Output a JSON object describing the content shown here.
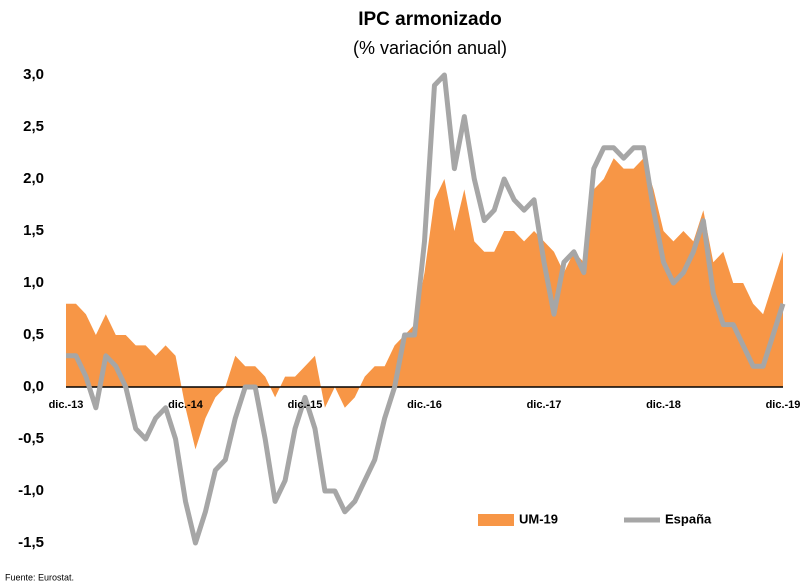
{
  "chart_data": {
    "type": "area_line",
    "title": "IPC armonizado",
    "subtitle": "(% variación anual)",
    "source": "Fuente: Eurostat.",
    "categories": [
      "dic.-13",
      null,
      null,
      null,
      null,
      null,
      null,
      null,
      null,
      null,
      null,
      null,
      "dic.-14",
      null,
      null,
      null,
      null,
      null,
      null,
      null,
      null,
      null,
      null,
      null,
      "dic.-15",
      null,
      null,
      null,
      null,
      null,
      null,
      null,
      null,
      null,
      null,
      null,
      "dic.-16",
      null,
      null,
      null,
      null,
      null,
      null,
      null,
      null,
      null,
      null,
      null,
      "dic.-17",
      null,
      null,
      null,
      null,
      null,
      null,
      null,
      null,
      null,
      null,
      null,
      "dic.-18",
      null,
      null,
      null,
      null,
      null,
      null,
      null,
      null,
      null,
      null,
      null,
      "dic.-19"
    ],
    "series": [
      {
        "name": "UM-19",
        "kind": "area",
        "color": "#f79646",
        "values": [
          0.8,
          0.8,
          0.7,
          0.5,
          0.7,
          0.5,
          0.5,
          0.4,
          0.4,
          0.3,
          0.4,
          0.3,
          -0.2,
          -0.6,
          -0.3,
          -0.1,
          0.0,
          0.3,
          0.2,
          0.2,
          0.1,
          -0.1,
          0.1,
          0.1,
          0.2,
          0.3,
          -0.2,
          0.0,
          -0.2,
          -0.1,
          0.1,
          0.2,
          0.2,
          0.4,
          0.5,
          0.6,
          1.1,
          1.8,
          2.0,
          1.5,
          1.9,
          1.4,
          1.3,
          1.3,
          1.5,
          1.5,
          1.4,
          1.5,
          1.4,
          1.3,
          1.1,
          1.3,
          1.2,
          1.9,
          2.0,
          2.2,
          2.1,
          2.1,
          2.2,
          1.9,
          1.5,
          1.4,
          1.5,
          1.4,
          1.7,
          1.2,
          1.3,
          1.0,
          1.0,
          0.8,
          0.7,
          1.0,
          1.3
        ]
      },
      {
        "name": "España",
        "kind": "line",
        "color": "#a6a6a6",
        "values": [
          0.3,
          0.3,
          0.1,
          -0.2,
          0.3,
          0.2,
          0.0,
          -0.4,
          -0.5,
          -0.3,
          -0.2,
          -0.5,
          -1.1,
          -1.5,
          -1.2,
          -0.8,
          -0.7,
          -0.3,
          0.0,
          0.0,
          -0.5,
          -1.1,
          -0.9,
          -0.4,
          -0.1,
          -0.4,
          -1.0,
          -1.0,
          -1.2,
          -1.1,
          -0.9,
          -0.7,
          -0.3,
          0.0,
          0.5,
          0.5,
          1.4,
          2.9,
          3.0,
          2.1,
          2.6,
          2.0,
          1.6,
          1.7,
          2.0,
          1.8,
          1.7,
          1.8,
          1.2,
          0.7,
          1.2,
          1.3,
          1.1,
          2.1,
          2.3,
          2.3,
          2.2,
          2.3,
          2.3,
          1.7,
          1.2,
          1.0,
          1.1,
          1.3,
          1.6,
          0.9,
          0.6,
          0.6,
          0.4,
          0.2,
          0.2,
          0.5,
          0.8
        ]
      }
    ],
    "ylim": [
      -1.5,
      3.0
    ],
    "yticks": [
      {
        "value": -1.5,
        "label": "-1,5"
      },
      {
        "value": -1.0,
        "label": "-1,0"
      },
      {
        "value": -0.5,
        "label": "-0,5"
      },
      {
        "value": 0,
        "label": "0,0"
      },
      {
        "value": 0.5,
        "label": "0,5"
      },
      {
        "value": 1.0,
        "label": "1,0"
      },
      {
        "value": 1.5,
        "label": "1,5"
      },
      {
        "value": 2.0,
        "label": "2,0"
      },
      {
        "value": 2.5,
        "label": "2,5"
      },
      {
        "value": 3.0,
        "label": "3,0"
      }
    ],
    "grid": false,
    "legend": "bottom-right"
  }
}
